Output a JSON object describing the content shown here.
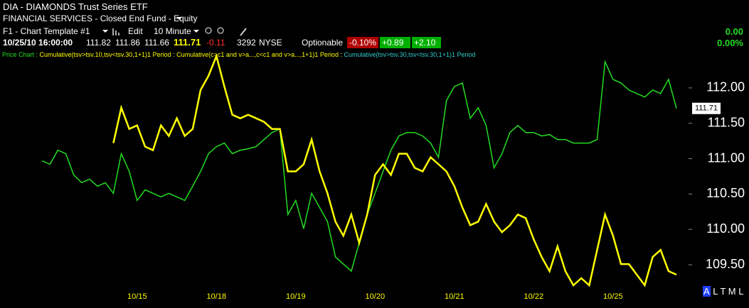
{
  "header": {
    "symbol": "DIA - DIAMONDS Trust Series ETF",
    "sector": "FINANCIAL SERVICES - Closed End Fund - Equity",
    "template": "F1 - Chart Template #1",
    "edit": "Edit",
    "interval": "10 Minute",
    "quote": {
      "datetime": "10/25/10 16:00:00",
      "open": "111.82",
      "high": "111.86",
      "low": "111.66",
      "last": "111.71",
      "change": "-0.11",
      "volume": "3292",
      "exchange": "NYSE",
      "optionable": "Optionable",
      "pct": "-0.10%",
      "box1": "+0.89",
      "box2": "+2.10"
    },
    "right_change": "0.00",
    "right_pct": "0.00%"
  },
  "legend": [
    "Price Chart :",
    "Cumulative(tsv>tsv.10,tsv<tsv.30,1+1)1 Period :",
    "Cumulative(c>c1 and v>a...,c<c1 and v>a...,1+1)1 Period :",
    "Cumulative(tsv>tsv.30,tsv<tsv.30,1+1)1 Period"
  ],
  "toolbar": [
    "A",
    "L",
    "T",
    "M",
    "L"
  ],
  "chart_data": {
    "type": "line",
    "categories": [
      null,
      null,
      null,
      null,
      null,
      null,
      null,
      null,
      null,
      null,
      null,
      null,
      "10/15",
      null,
      null,
      null,
      null,
      null,
      null,
      null,
      null,
      null,
      "10/18",
      null,
      null,
      null,
      null,
      null,
      null,
      null,
      null,
      null,
      "10/19",
      null,
      null,
      null,
      null,
      null,
      null,
      null,
      null,
      null,
      "10/20",
      null,
      null,
      null,
      null,
      null,
      null,
      null,
      null,
      null,
      "10/21",
      null,
      null,
      null,
      null,
      null,
      null,
      null,
      null,
      null,
      "10/22",
      null,
      null,
      null,
      null,
      null,
      null,
      null,
      null,
      null,
      "10/25",
      null,
      null,
      null,
      null,
      null,
      null,
      null,
      null
    ],
    "series": [
      {
        "name": "Price",
        "color": "#22dd22",
        "values": [
          110.97,
          110.92,
          111.12,
          111.07,
          110.77,
          110.66,
          110.71,
          110.61,
          110.66,
          110.51,
          111.07,
          110.82,
          110.41,
          110.56,
          110.51,
          110.46,
          110.51,
          110.46,
          110.41,
          110.61,
          110.82,
          111.07,
          111.17,
          111.22,
          111.07,
          111.12,
          111.14,
          111.17,
          111.27,
          111.37,
          111.42,
          110.21,
          110.41,
          110.01,
          110.51,
          110.31,
          110.11,
          109.61,
          109.51,
          109.41,
          109.81,
          110.21,
          110.51,
          110.82,
          111.12,
          111.32,
          111.37,
          111.37,
          111.32,
          111.22,
          111.02,
          111.82,
          112.02,
          112.07,
          111.57,
          111.72,
          111.47,
          110.87,
          111.07,
          111.37,
          111.47,
          111.37,
          111.37,
          111.32,
          111.34,
          111.27,
          111.27,
          111.22,
          111.22,
          111.22,
          111.27,
          112.37,
          112.12,
          112.07,
          111.97,
          111.92,
          111.87,
          111.97,
          111.92,
          112.12,
          111.71
        ]
      },
      {
        "name": "Cumulative",
        "color": "#ffff00",
        "values": [
          null,
          null,
          null,
          null,
          null,
          null,
          null,
          null,
          null,
          111.22,
          111.72,
          111.42,
          111.47,
          111.17,
          111.12,
          111.47,
          111.32,
          111.57,
          111.32,
          111.42,
          111.97,
          112.17,
          112.45,
          112.02,
          111.62,
          111.57,
          111.62,
          111.57,
          111.52,
          111.42,
          111.42,
          110.82,
          110.82,
          110.92,
          111.27,
          110.82,
          110.51,
          110.11,
          109.91,
          110.21,
          109.81,
          110.21,
          110.77,
          110.92,
          110.77,
          111.07,
          111.07,
          110.87,
          110.82,
          111.02,
          110.92,
          110.82,
          110.61,
          110.31,
          110.06,
          110.11,
          110.36,
          110.11,
          109.96,
          110.06,
          110.21,
          110.16,
          109.86,
          109.61,
          109.41,
          109.76,
          109.41,
          109.21,
          109.31,
          109.21,
          109.71,
          110.21,
          109.91,
          109.51,
          109.51,
          109.36,
          109.21,
          109.61,
          109.71,
          109.41,
          109.36
        ]
      }
    ],
    "ylim": [
      109.2,
      112.5
    ],
    "yticks": [
      {
        "value": 112,
        "label": "112.00"
      },
      {
        "value": 111.5,
        "label": "111.50"
      },
      {
        "value": 111,
        "label": "111.00"
      },
      {
        "value": 110.5,
        "label": "110.50"
      },
      {
        "value": 110,
        "label": "110.00"
      },
      {
        "value": 109.5,
        "label": "109.50"
      }
    ],
    "price_tag": {
      "value": 111.71,
      "label": "111.71"
    }
  }
}
